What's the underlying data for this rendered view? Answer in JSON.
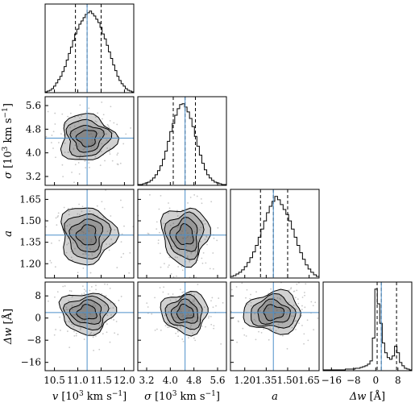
{
  "chart_data": {
    "type": "corner",
    "parameters": [
      {
        "id": "v",
        "label_main": "v",
        "label_unit_pre": " [10",
        "label_unit_sup": "3",
        "label_unit_post": " km s",
        "label_unit_sup2": "−1",
        "label_unit_end": "]",
        "range": [
          10.3,
          12.2
        ],
        "ticks": [
          10.5,
          11.0,
          11.5,
          12.0
        ],
        "tick_labels": [
          "10.5",
          "11.0",
          "11.5",
          "12.0"
        ],
        "median": 11.2,
        "quantile_low": 10.95,
        "quantile_high": 11.5,
        "histogram": [
          1,
          2,
          3,
          5,
          8,
          12,
          16,
          20,
          26,
          32,
          40,
          48,
          56,
          64,
          72,
          78,
          84,
          88,
          92,
          96,
          98,
          100,
          97,
          94,
          90,
          86,
          80,
          72,
          66,
          58,
          50,
          42,
          34,
          27,
          20,
          15,
          11,
          8,
          5,
          3,
          2,
          1
        ]
      },
      {
        "id": "sigma",
        "label_main": "σ",
        "label_unit_pre": " [10",
        "label_unit_sup": "3",
        "label_unit_post": " km s",
        "label_unit_sup2": "−1",
        "label_unit_end": "]",
        "range": [
          2.9,
          5.9
        ],
        "ticks": [
          3.2,
          4.0,
          4.8,
          5.6
        ],
        "tick_labels": [
          "3.2",
          "4.0",
          "4.8",
          "5.6"
        ],
        "median": 4.5,
        "quantile_low": 4.1,
        "quantile_high": 4.85,
        "histogram": [
          1,
          1,
          2,
          3,
          4,
          6,
          9,
          13,
          18,
          24,
          32,
          42,
          54,
          66,
          76,
          86,
          94,
          99,
          100,
          96,
          90,
          82,
          72,
          60,
          48,
          37,
          27,
          19,
          13,
          9,
          6,
          4,
          3,
          2,
          1,
          1
        ]
      },
      {
        "id": "a",
        "label_main": "a",
        "label_unit_pre": "",
        "label_unit_sup": "",
        "label_unit_post": "",
        "label_unit_sup2": "",
        "label_unit_end": "",
        "range": [
          1.1,
          1.72
        ],
        "ticks": [
          1.2,
          1.35,
          1.5,
          1.65
        ],
        "tick_labels": [
          "1.20",
          "1.35",
          "1.50",
          "1.65"
        ],
        "median": 1.4,
        "quantile_low": 1.31,
        "quantile_high": 1.5,
        "histogram": [
          2,
          3,
          5,
          7,
          10,
          14,
          19,
          25,
          32,
          40,
          50,
          60,
          70,
          80,
          88,
          94,
          100,
          96,
          90,
          84,
          78,
          70,
          60,
          50,
          40,
          31,
          23,
          16,
          11,
          7,
          4,
          2
        ]
      },
      {
        "id": "dw",
        "label_main": "Δw",
        "label_unit_pre": " [Å]",
        "label_unit_sup": "",
        "label_unit_post": "",
        "label_unit_sup2": "",
        "label_unit_end": "",
        "range": [
          -19,
          13
        ],
        "ticks": [
          -16,
          -8,
          0,
          8
        ],
        "tick_labels": [
          "−16",
          "−8",
          "0",
          "8"
        ],
        "median": 2.0,
        "quantile_low": 0.5,
        "quantile_high": 7.5,
        "histogram": [
          1,
          1,
          1,
          1,
          1,
          1,
          1,
          1,
          1,
          2,
          2,
          2,
          2,
          3,
          3,
          4,
          5,
          6,
          8,
          12,
          40,
          100,
          82,
          58,
          34,
          22,
          16,
          14,
          18,
          30,
          22,
          10,
          6,
          3,
          2,
          1
        ]
      }
    ],
    "contour_levels": 4,
    "truth_color": "#4d8fc9",
    "colors": {
      "hist_line": "#000000",
      "quantile_line": "#000000",
      "contour_fill": "#5a5a5a",
      "scatter": "#c8c8c8"
    }
  }
}
